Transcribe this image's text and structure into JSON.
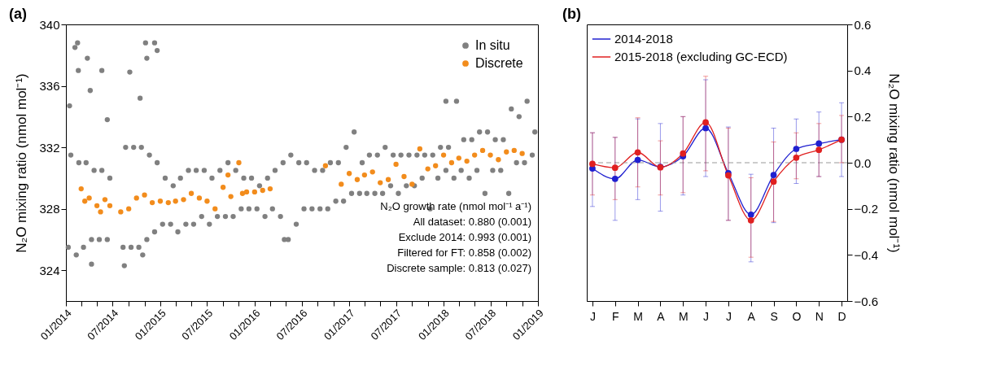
{
  "chart_data": [
    {
      "type": "scatter",
      "title": "(a)",
      "ylabel": "N₂O mixing ratio (nmol mol⁻¹)",
      "xlim": [
        "2014-01-01",
        "2019-01-01"
      ],
      "xticks": [
        {
          "value": "2014-01-01",
          "label": "01/2014"
        },
        {
          "value": "2014-03-01",
          "label": null
        },
        {
          "value": "2014-05-01",
          "label": null
        },
        {
          "value": "2014-07-01",
          "label": "07/2014"
        },
        {
          "value": "2014-09-01",
          "label": null
        },
        {
          "value": "2014-11-01",
          "label": null
        },
        {
          "value": "2015-01-01",
          "label": "01/2015"
        },
        {
          "value": "2015-03-01",
          "label": null
        },
        {
          "value": "2015-05-01",
          "label": null
        },
        {
          "value": "2015-07-01",
          "label": "07/2015"
        },
        {
          "value": "2015-09-01",
          "label": null
        },
        {
          "value": "2015-11-01",
          "label": null
        },
        {
          "value": "2016-01-01",
          "label": "01/2016"
        },
        {
          "value": "2016-03-01",
          "label": null
        },
        {
          "value": "2016-05-01",
          "label": null
        },
        {
          "value": "2016-07-01",
          "label": "07/2016"
        },
        {
          "value": "2016-09-01",
          "label": null
        },
        {
          "value": "2016-11-01",
          "label": null
        },
        {
          "value": "2017-01-01",
          "label": "01/2017"
        },
        {
          "value": "2017-03-01",
          "label": null
        },
        {
          "value": "2017-05-01",
          "label": null
        },
        {
          "value": "2017-07-01",
          "label": "07/2017"
        },
        {
          "value": "2017-09-01",
          "label": null
        },
        {
          "value": "2017-11-01",
          "label": null
        },
        {
          "value": "2018-01-01",
          "label": "01/2018"
        },
        {
          "value": "2018-03-01",
          "label": null
        },
        {
          "value": "2018-05-01",
          "label": null
        },
        {
          "value": "2018-07-01",
          "label": "07/2018"
        },
        {
          "value": "2018-09-01",
          "label": null
        },
        {
          "value": "2018-11-01",
          "label": null
        },
        {
          "value": "2019-01-01",
          "label": "01/2019"
        }
      ],
      "ylim": [
        322,
        340
      ],
      "yticks": [
        324,
        328,
        332,
        336,
        340
      ],
      "grid": false,
      "legend": "top right",
      "marker": "circle",
      "series": [
        {
          "name": "In situ",
          "color": "#808080",
          "x": [
            "2014-01-10",
            "2014-01-20",
            "2014-02-10",
            "2014-02-20",
            "2014-03-10",
            "2014-03-20",
            "2014-04-10",
            "2014-04-20",
            "2014-05-10",
            "2014-05-20",
            "2014-06-10",
            "2014-06-20",
            "2014-08-10",
            "2014-08-20",
            "2014-09-10",
            "2014-09-20",
            "2014-10-10",
            "2014-10-20",
            "2014-11-10",
            "2014-11-20",
            "2014-12-10",
            "2014-12-20",
            "2015-01-10",
            "2015-01-20",
            "2015-02-10",
            "2015-02-20",
            "2015-03-10",
            "2015-03-20",
            "2015-04-10",
            "2015-04-20",
            "2015-05-10",
            "2015-05-20",
            "2015-06-10",
            "2015-06-20",
            "2015-07-10",
            "2015-07-20",
            "2015-08-10",
            "2015-08-20",
            "2015-09-10",
            "2015-09-20",
            "2015-10-10",
            "2015-10-20",
            "2015-11-10",
            "2015-11-20",
            "2015-12-10",
            "2015-12-20",
            "2016-01-10",
            "2016-01-20",
            "2016-02-10",
            "2016-02-20",
            "2016-03-10",
            "2016-03-20",
            "2016-04-10",
            "2016-04-20",
            "2016-05-10",
            "2016-05-20",
            "2016-06-10",
            "2016-06-20",
            "2016-07-10",
            "2016-07-20",
            "2016-08-10",
            "2016-08-20",
            "2016-09-10",
            "2016-09-20",
            "2016-10-10",
            "2016-10-20",
            "2016-11-10",
            "2016-11-20",
            "2016-12-10",
            "2016-12-20",
            "2017-01-10",
            "2017-01-20",
            "2017-02-10",
            "2017-02-20",
            "2017-03-10",
            "2017-03-20",
            "2017-04-10",
            "2017-04-20",
            "2017-05-10",
            "2017-05-20",
            "2017-06-10",
            "2017-06-20",
            "2017-07-10",
            "2017-07-20",
            "2017-08-10",
            "2017-08-20",
            "2017-09-10",
            "2017-09-20",
            "2017-10-10",
            "2017-10-20",
            "2017-11-10",
            "2017-11-20",
            "2017-12-10",
            "2017-12-20",
            "2018-01-10",
            "2018-01-20",
            "2018-02-10",
            "2018-02-20",
            "2018-03-10",
            "2018-03-20",
            "2018-04-10",
            "2018-04-20",
            "2018-05-10",
            "2018-05-20",
            "2018-06-10",
            "2018-06-20",
            "2018-07-10",
            "2018-07-20",
            "2018-08-10",
            "2018-08-20",
            "2018-09-10",
            "2018-09-20",
            "2018-10-10",
            "2018-10-20",
            "2018-11-10",
            "2018-11-20",
            "2018-12-10",
            "2018-12-20",
            "2014-01-15",
            "2014-02-05",
            "2014-02-15",
            "2014-02-18",
            "2014-03-25",
            "2014-04-05",
            "2014-05-20",
            "2014-04-10",
            "2014-06-10",
            "2014-09-05",
            "2014-10-15",
            "2014-11-05",
            "2014-11-10",
            "2014-12-10",
            "2014-12-20",
            "2014-08-15",
            "2014-10-25",
            "2018-01-10",
            "2016-04-25"
          ],
          "values": [
            325.5,
            331.5,
            325,
            331,
            325.5,
            331,
            326,
            330.5,
            326,
            330.5,
            326,
            330,
            325.5,
            332,
            325.5,
            332,
            325.5,
            332,
            326,
            331.5,
            326.5,
            331,
            327,
            330,
            327,
            329.5,
            326.5,
            330,
            327,
            330.5,
            327,
            330.5,
            327.5,
            330.5,
            327,
            330,
            327.5,
            330.5,
            327.5,
            331,
            327.5,
            330.5,
            328,
            330,
            328,
            330,
            328,
            329.5,
            327.5,
            330,
            328,
            330.5,
            327.5,
            331,
            326,
            331.5,
            327,
            331,
            328,
            331,
            328,
            330.5,
            328,
            330.5,
            328,
            331,
            328.5,
            331,
            328.5,
            332,
            329,
            333,
            329,
            331,
            329,
            331.5,
            329,
            331.5,
            329,
            332,
            329.5,
            331.5,
            329,
            331.5,
            329.5,
            331.5,
            329.5,
            331.5,
            330,
            331.5,
            328,
            331.5,
            330,
            332,
            330.5,
            332,
            330,
            335,
            330.5,
            332.5,
            330,
            332.5,
            330.5,
            333,
            329,
            333,
            330.5,
            332.5,
            330.5,
            332.5,
            329,
            334.5,
            331,
            334,
            331,
            335,
            331.5,
            333,
            334.7,
            338.5,
            338.8,
            337,
            337.8,
            335.7,
            337,
            324.4,
            333.8,
            336.9,
            335.2,
            338.8,
            337.8,
            338.8,
            338.3,
            324.3,
            325,
            335,
            326
          ]
        },
        {
          "name": "Discrete",
          "color": "#f28c1c",
          "x": [
            "2014-03-01",
            "2014-03-15",
            "2014-04-01",
            "2014-05-01",
            "2014-05-15",
            "2014-06-01",
            "2014-06-20",
            "2014-08-01",
            "2014-09-01",
            "2014-10-01",
            "2014-11-01",
            "2014-12-01",
            "2015-01-01",
            "2015-02-01",
            "2015-03-01",
            "2015-04-01",
            "2015-05-01",
            "2015-06-01",
            "2015-07-01",
            "2015-08-01",
            "2015-09-01",
            "2015-09-20",
            "2015-10-01",
            "2015-11-01",
            "2015-11-15",
            "2015-12-01",
            "2016-01-01",
            "2016-02-01",
            "2016-03-01",
            "2016-10-01",
            "2016-12-01",
            "2017-01-01",
            "2017-02-01",
            "2017-03-01",
            "2017-04-01",
            "2017-05-01",
            "2017-06-01",
            "2017-07-01",
            "2017-08-01",
            "2017-09-01",
            "2017-10-01",
            "2017-11-01",
            "2017-12-01",
            "2018-01-01",
            "2018-02-01",
            "2018-03-01",
            "2018-04-01",
            "2018-05-01",
            "2018-06-01",
            "2018-07-01",
            "2018-08-01",
            "2018-09-01",
            "2018-10-01",
            "2018-11-01"
          ],
          "values": [
            329.3,
            328.5,
            328.7,
            328.2,
            327.8,
            328.6,
            328.2,
            327.8,
            328.0,
            328.7,
            328.9,
            328.4,
            328.5,
            328.4,
            328.5,
            328.6,
            329.0,
            328.7,
            328.5,
            328.0,
            329.4,
            330.2,
            328.8,
            331.0,
            329.0,
            329.1,
            329.1,
            329.2,
            329.3,
            330.8,
            329.6,
            330.3,
            329.9,
            330.2,
            330.4,
            329.7,
            329.9,
            330.9,
            330.1,
            329.6,
            331.9,
            330.6,
            330.8,
            331.5,
            331.0,
            331.3,
            331.1,
            331.5,
            331.8,
            331.5,
            331.2,
            331.7,
            331.8,
            331.6
          ]
        }
      ],
      "annotations": [
        "N₂O growth rate (nmol mol⁻¹ a⁻¹)",
        "All dataset:   0.880 (0.001)",
        "Exclude 2014:   0.993 (0.001)",
        "Filtered for FT:   0.858 (0.002)",
        "Discrete sample:   0.813 (0.027)"
      ]
    },
    {
      "type": "line",
      "title": "(b)",
      "ylabel": "N₂O mixing ratio (nmol mol⁻¹)",
      "categories": [
        "J",
        "F",
        "M",
        "A",
        "M",
        "J",
        "J",
        "A",
        "S",
        "O",
        "N",
        "D"
      ],
      "ylim": [
        -0.6,
        0.6
      ],
      "yticks": [
        -0.6,
        -0.4,
        -0.2,
        {
          "value": 0,
          "label": "0.0"
        },
        0.2,
        0.4,
        0.6
      ],
      "grid": false,
      "legend": "top left",
      "marker": "circle",
      "line_style": "solid",
      "ref_lines": [
        {
          "axis": "y",
          "value": 0,
          "color": "#999999",
          "line_style": "dashed"
        }
      ],
      "series": [
        {
          "name": "2014-2018",
          "color": "#2020d0",
          "values": [
            -0.025,
            -0.07,
            0.012,
            -0.018,
            0.028,
            0.15,
            -0.045,
            -0.225,
            -0.053,
            0.06,
            0.083,
            0.1
          ],
          "errors": [
            [
              -0.19,
              0.13
            ],
            [
              -0.25,
              0.11
            ],
            [
              -0.16,
              0.19
            ],
            [
              -0.21,
              0.17
            ],
            [
              -0.14,
              0.2
            ],
            [
              -0.06,
              0.36
            ],
            [
              -0.25,
              0.155
            ],
            [
              -0.43,
              -0.05
            ],
            [
              -0.26,
              0.15
            ],
            [
              -0.09,
              0.19
            ],
            [
              -0.06,
              0.22
            ],
            [
              -0.06,
              0.26
            ]
          ]
        },
        {
          "name": "2015-2018 (excluding GC-ECD)",
          "color": "#e02020",
          "values": [
            -0.005,
            -0.022,
            0.045,
            -0.02,
            0.04,
            0.175,
            -0.055,
            -0.25,
            -0.082,
            0.022,
            0.056,
            0.1
          ],
          "errors": [
            [
              -0.14,
              0.13
            ],
            [
              -0.16,
              0.11
            ],
            [
              -0.105,
              0.195
            ],
            [
              -0.14,
              0.095
            ],
            [
              -0.13,
              0.2
            ],
            [
              -0.035,
              0.375
            ],
            [
              -0.25,
              0.15
            ],
            [
              -0.41,
              -0.065
            ],
            [
              -0.255,
              0.09
            ],
            [
              -0.07,
              0.13
            ],
            [
              -0.06,
              0.17
            ],
            [
              0.0,
              0.205
            ]
          ]
        }
      ]
    }
  ]
}
